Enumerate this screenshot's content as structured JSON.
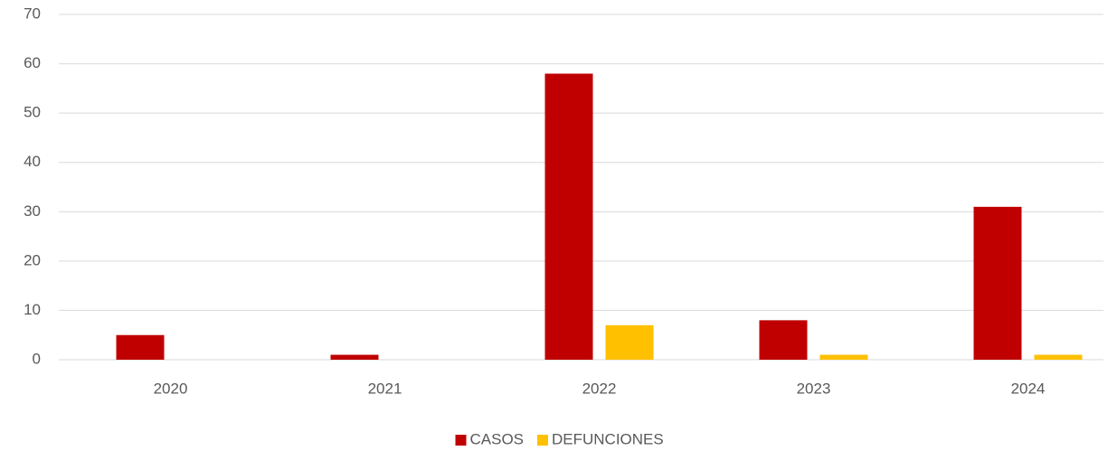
{
  "chart_data": {
    "type": "bar",
    "categories": [
      "2020",
      "2021",
      "2022",
      "2023",
      "2024"
    ],
    "series": [
      {
        "name": "CASOS",
        "color": "#c00000",
        "values": [
          5,
          1,
          58,
          8,
          31
        ]
      },
      {
        "name": "DEFUNCIONES",
        "color": "#ffc000",
        "values": [
          0,
          0,
          7,
          1,
          1
        ]
      }
    ],
    "ylim": [
      0,
      70
    ],
    "yticks": [
      0,
      10,
      20,
      30,
      40,
      50,
      60,
      70
    ],
    "grid": true,
    "legend": "bottom"
  }
}
